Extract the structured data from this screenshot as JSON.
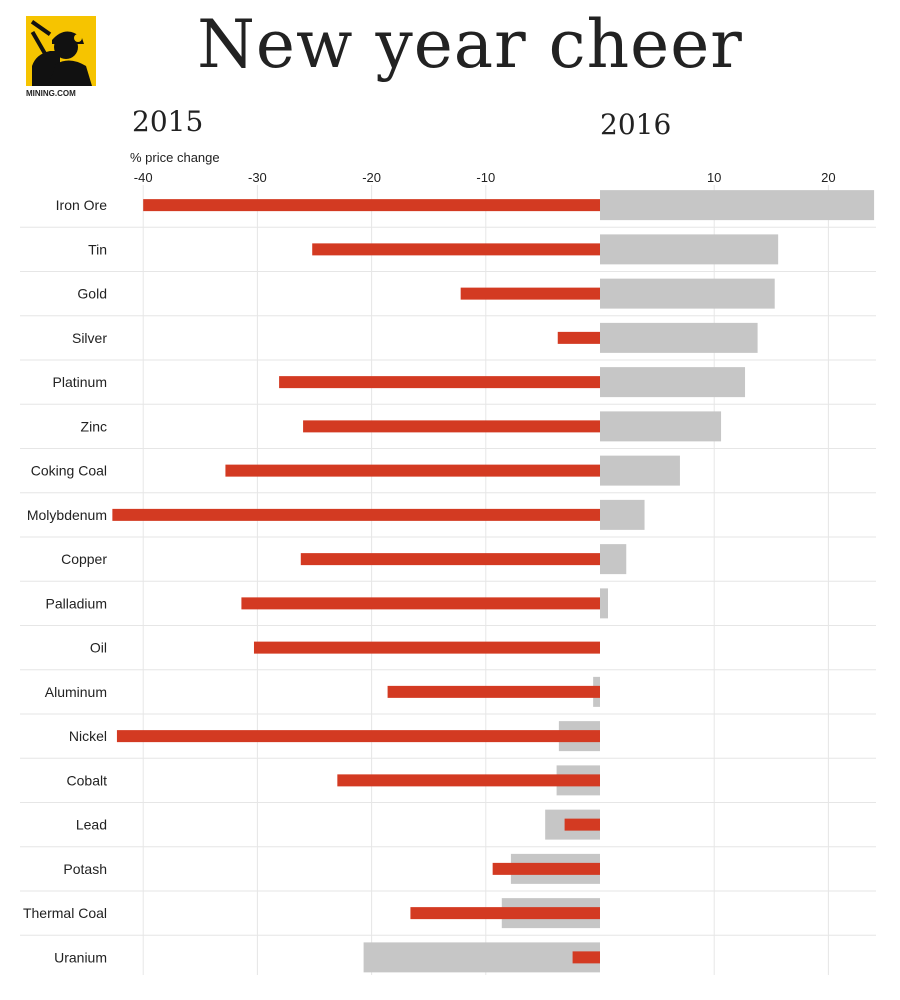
{
  "header": {
    "title": "New year cheer",
    "logo_text": "MINING.COM",
    "year_left": "2015",
    "year_right": "2016",
    "unit_label": "% price change"
  },
  "colors": {
    "bar_2015": "#d33a22",
    "bar_2016": "#c6c6c6",
    "gridline": "#e6e6e6",
    "logo_bg": "#f6c400"
  },
  "chart_data": {
    "type": "bar",
    "orientation": "horizontal",
    "xlabel": "% price change",
    "xlim": [
      -40,
      24
    ],
    "xticks": [
      -40,
      -30,
      -20,
      -10,
      10,
      20
    ],
    "categories": [
      "Iron Ore",
      "Tin",
      "Gold",
      "Silver",
      "Platinum",
      "Zinc",
      "Coking Coal",
      "Molybdenum",
      "Copper",
      "Palladium",
      "Oil",
      "Aluminum",
      "Nickel",
      "Cobalt",
      "Lead",
      "Potash",
      "Thermal Coal",
      "Uranium"
    ],
    "series": [
      {
        "name": "2016",
        "values": [
          24,
          15.6,
          15.3,
          13.8,
          12.7,
          10.6,
          7,
          3.9,
          2.3,
          0.7,
          0,
          -0.6,
          -3.6,
          -3.8,
          -4.8,
          -7.8,
          -8.6,
          -20.7
        ]
      },
      {
        "name": "2015",
        "values": [
          -40,
          -25.2,
          -12.2,
          -3.7,
          -28.1,
          -26,
          -32.8,
          -42.7,
          -26.2,
          -31.4,
          -30.3,
          -18.6,
          -42.3,
          -23,
          -3.1,
          -9.4,
          -16.6,
          -2.4
        ]
      }
    ],
    "grid": true
  }
}
